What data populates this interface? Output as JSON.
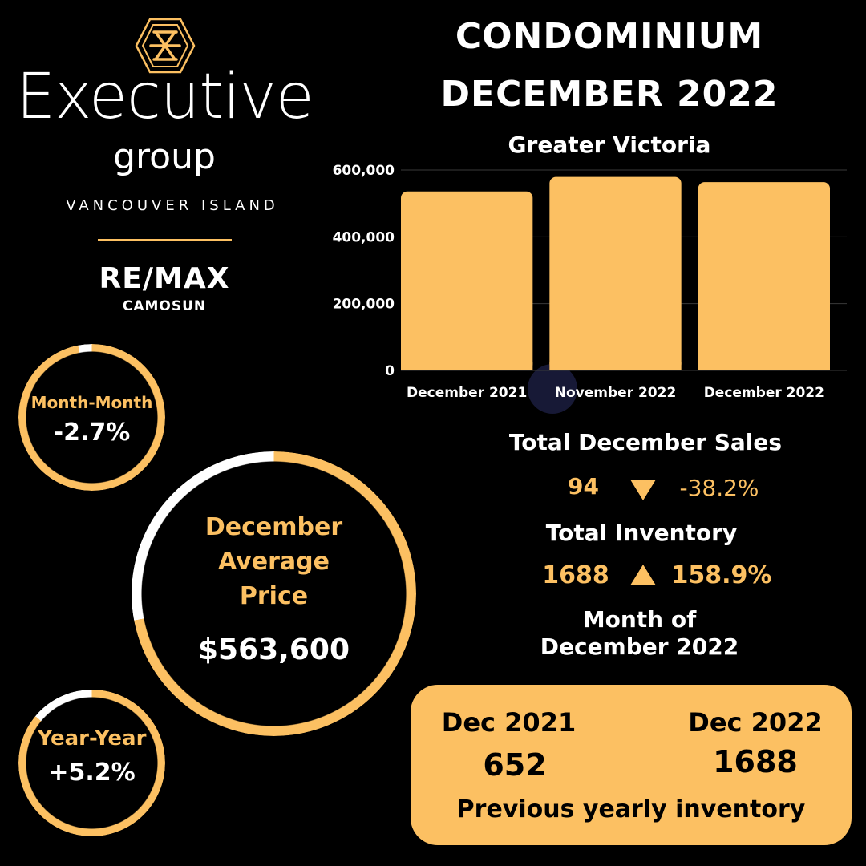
{
  "colors": {
    "accent": "#fcc062",
    "background": "#000000",
    "ring_track": "#ffffff",
    "text": "#ffffff"
  },
  "brand": {
    "logo_icon": "hexagon-monogram-icon",
    "name": "Executive",
    "sub": "group",
    "region": "VANCOUVER ISLAND",
    "remax": "RE/MAX",
    "remax_office": "CAMOSUN"
  },
  "header": {
    "title_line1": "CONDOMINIUM",
    "title_line2": "DECEMBER 2022",
    "subtitle": "Greater Victoria"
  },
  "chart_data": {
    "type": "bar",
    "categories": [
      "December 2021",
      "November 2022",
      "December 2022"
    ],
    "values": [
      535700,
      579200,
      563600
    ],
    "ylim": [
      0,
      600000
    ],
    "yticks": [
      0,
      200000,
      400000,
      600000
    ],
    "ytick_labels": [
      "0",
      "200,000",
      "400,000",
      "600,000"
    ],
    "grid": true,
    "bar_color": "#fcc062"
  },
  "rings": {
    "month_month": {
      "label": "Month-Month",
      "value": "-2.7%",
      "level": 0.97
    },
    "average": {
      "label_line1": "December",
      "label_line2": "Average",
      "label_line3": "Price",
      "value": "$563,600",
      "level": 0.72
    },
    "year_year": {
      "label": "Year-Year",
      "value": "+5.2%",
      "level": 0.86
    }
  },
  "sales": {
    "title": "Total December Sales",
    "value": "94",
    "direction_icon": "triangle-down-icon",
    "change": "-38.2%"
  },
  "inventory": {
    "title": "Total Inventory",
    "value": "1688",
    "direction_icon": "triangle-up-icon",
    "change": "158.9%"
  },
  "period": {
    "line1": "Month of",
    "line2": "December 2022"
  },
  "inventory_card": {
    "left_label": "Dec 2021",
    "left_value": "652",
    "right_label": "Dec 2022",
    "right_value": "1688",
    "caption": "Previous yearly inventory"
  }
}
